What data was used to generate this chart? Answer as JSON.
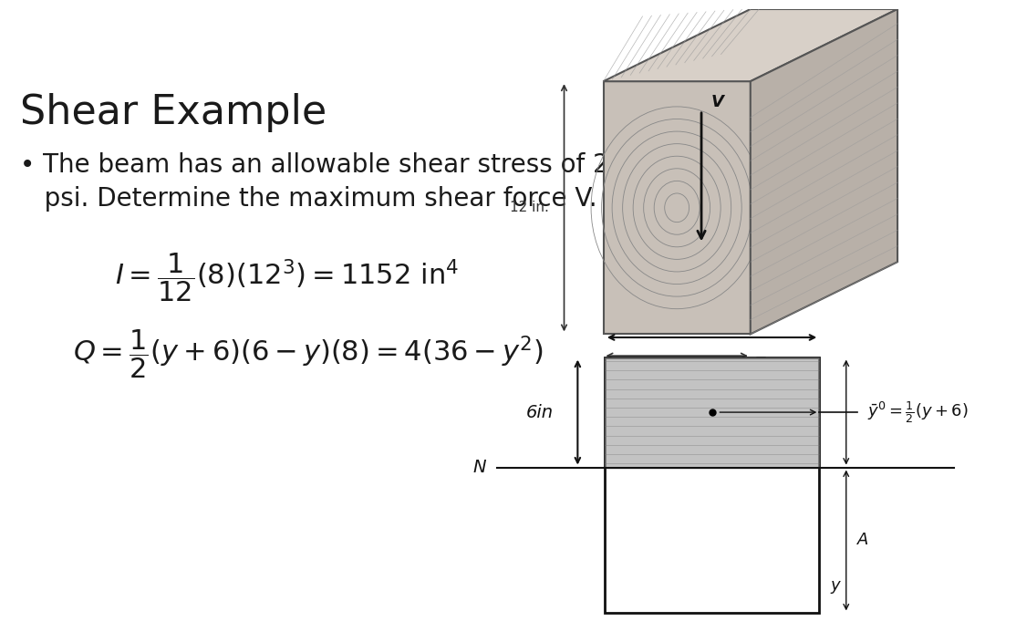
{
  "title": "Shear Example",
  "bullet": "The beam has an allowable shear stress of 200 psi. Determine the maximum shear force V.",
  "eq1": "$I = \\dfrac{1}{12}(8)(12^3) = 1152\\ \\mathrm{in}^4$",
  "eq2": "$Q = \\dfrac{1}{2}(y + 6)(6 - y)(8) = 4(36 - y^2)$",
  "bg_color": "#ffffff",
  "text_color": "#1a1a1a",
  "title_fontsize": 32,
  "bullet_fontsize": 20,
  "eq_fontsize": 22
}
